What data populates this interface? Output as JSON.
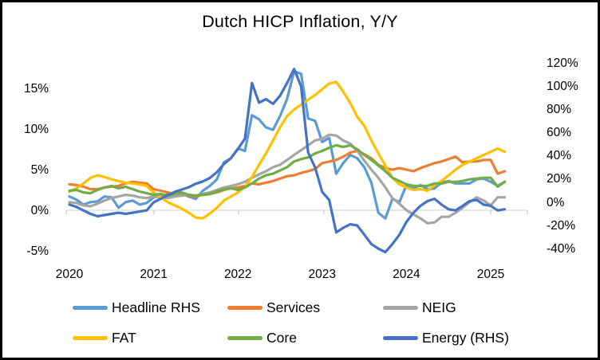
{
  "frame": {
    "border_color": "#000000",
    "background": "#ffffff"
  },
  "chart_data": {
    "type": "line",
    "title": "Dutch HICP Inflation, Y/Y",
    "frequency": "monthly",
    "start": "2020-01",
    "end": "2025-03",
    "x_tick_labels": [
      "2020",
      "2021",
      "2022",
      "2023",
      "2024",
      "2025"
    ],
    "grid": "zero-line-only",
    "gridline_color": "#D9D9D9",
    "left_axis": {
      "tick_labels": [
        "15%",
        "10%",
        "5%",
        "0%",
        "-5%"
      ],
      "tick_values": [
        15,
        10,
        5,
        0,
        -5
      ],
      "range": [
        -5,
        17.5
      ]
    },
    "right_axis": {
      "tick_labels": [
        "120%",
        "100%",
        "80%",
        "60%",
        "40%",
        "20%",
        "0%",
        "-20%",
        "-40%"
      ],
      "tick_values": [
        120,
        100,
        80,
        60,
        40,
        20,
        0,
        -20,
        -40
      ],
      "range": [
        -40,
        120
      ]
    },
    "legend_position": "bottom",
    "series": [
      {
        "name": "Headline RHS",
        "color": "#5B9BD5",
        "axis": "left",
        "values": [
          1.7,
          1.3,
          0.7,
          1.0,
          1.1,
          1.7,
          1.6,
          0.3,
          1.0,
          1.2,
          0.7,
          0.9,
          1.6,
          1.9,
          1.9,
          1.7,
          2.0,
          1.7,
          1.4,
          2.4,
          3.0,
          3.8,
          5.9,
          6.4,
          7.6,
          7.3,
          11.7,
          11.2,
          10.2,
          9.9,
          11.6,
          13.7,
          17.1,
          16.8,
          11.3,
          11.0,
          8.4,
          8.9,
          4.5,
          5.8,
          6.8,
          6.4,
          5.3,
          3.4,
          -0.3,
          -1.0,
          1.4,
          1.0,
          3.1,
          2.7,
          3.1,
          2.6,
          2.7,
          3.4,
          3.6,
          3.3,
          3.3,
          3.3,
          3.8,
          3.9,
          3.5,
          3.0,
          3.5
        ]
      },
      {
        "name": "Services",
        "color": "#ED7D31",
        "axis": "left",
        "values": [
          3.2,
          3.1,
          2.9,
          2.6,
          2.6,
          2.8,
          2.9,
          3.0,
          3.3,
          3.5,
          3.4,
          3.3,
          2.6,
          2.4,
          2.2,
          2.0,
          2.0,
          1.8,
          1.7,
          1.9,
          2.0,
          2.2,
          2.5,
          2.7,
          2.8,
          3.0,
          3.3,
          3.2,
          3.4,
          3.6,
          3.9,
          4.2,
          4.3,
          4.6,
          4.8,
          5.1,
          5.8,
          6.0,
          6.2,
          6.6,
          7.1,
          7.3,
          6.9,
          6.4,
          5.6,
          5.2,
          5.0,
          5.2,
          5.0,
          4.8,
          5.2,
          5.5,
          5.8,
          6.0,
          6.3,
          6.6,
          5.9,
          6.0,
          6.0,
          6.2,
          6.2,
          4.5,
          4.8
        ]
      },
      {
        "name": "NEIG",
        "color": "#A5A5A5",
        "axis": "left",
        "values": [
          1.0,
          0.9,
          0.6,
          0.5,
          0.8,
          1.2,
          1.5,
          1.7,
          1.9,
          1.8,
          1.6,
          1.5,
          1.7,
          1.6,
          1.5,
          1.7,
          1.8,
          1.9,
          1.8,
          2.0,
          2.2,
          2.5,
          2.8,
          3.0,
          3.2,
          3.5,
          4.0,
          4.4,
          4.8,
          5.3,
          5.6,
          6.2,
          6.8,
          7.4,
          8.0,
          8.6,
          8.8,
          9.3,
          9.2,
          8.6,
          8.2,
          7.3,
          6.1,
          5.0,
          4.0,
          2.8,
          1.5,
          0.8,
          0.0,
          -0.5,
          -1.0,
          -1.6,
          -1.5,
          -0.8,
          -0.8,
          -0.3,
          0.3,
          1.0,
          1.6,
          1.2,
          0.6,
          1.6,
          1.6
        ]
      },
      {
        "name": "FAT",
        "color": "#FFC000",
        "axis": "left",
        "values": [
          2.3,
          2.7,
          3.3,
          4.0,
          4.3,
          4.1,
          3.8,
          3.6,
          3.4,
          3.3,
          3.2,
          3.0,
          2.2,
          1.6,
          1.0,
          0.6,
          0.2,
          -0.3,
          -0.9,
          -1.0,
          -0.4,
          0.3,
          1.2,
          1.7,
          2.2,
          2.9,
          4.1,
          5.6,
          7.0,
          8.6,
          10.2,
          11.6,
          12.4,
          13.0,
          13.6,
          14.2,
          14.9,
          15.6,
          15.8,
          14.6,
          13.2,
          11.5,
          10.4,
          8.6,
          7.0,
          5.5,
          4.0,
          3.2,
          2.8,
          2.5,
          2.6,
          2.4,
          3.1,
          3.6,
          4.3,
          5.0,
          5.6,
          6.0,
          6.4,
          6.8,
          7.2,
          7.6,
          7.2
        ]
      },
      {
        "name": "Core",
        "color": "#70AD47",
        "axis": "left",
        "values": [
          2.4,
          2.5,
          2.2,
          2.1,
          2.5,
          2.8,
          3.0,
          2.7,
          2.9,
          2.6,
          2.3,
          2.1,
          1.9,
          2.0,
          1.8,
          2.0,
          2.2,
          1.9,
          1.8,
          1.9,
          2.0,
          2.3,
          2.6,
          2.7,
          2.5,
          2.8,
          3.3,
          3.9,
          4.3,
          4.5,
          4.9,
          5.3,
          6.0,
          6.3,
          6.5,
          7.0,
          7.3,
          7.7,
          8.0,
          7.8,
          8.0,
          7.5,
          6.8,
          6.2,
          5.5,
          4.8,
          4.0,
          3.6,
          3.2,
          3.0,
          3.0,
          3.0,
          3.3,
          3.3,
          3.5,
          3.5,
          3.6,
          3.8,
          3.9,
          4.0,
          4.0,
          2.9,
          3.5
        ]
      },
      {
        "name": "Energy (RHS)",
        "color": "#4472C4",
        "axis": "right",
        "values": [
          -2,
          -4,
          -7,
          -10,
          -12,
          -11,
          -10,
          -9,
          -10,
          -9,
          -8,
          -7,
          0,
          3,
          6,
          9,
          11,
          13,
          16,
          18,
          21,
          26,
          33,
          38,
          46,
          55,
          103,
          86,
          89,
          85,
          92,
          103,
          115,
          100,
          43,
          30,
          9,
          2,
          -26,
          -22,
          -19,
          -20,
          -28,
          -36,
          -40,
          -43,
          -36,
          -28,
          -17,
          -9,
          -3,
          1,
          3,
          -2,
          -6,
          -7,
          -3,
          1,
          2,
          -2,
          -3,
          -7,
          -6
        ]
      }
    ]
  },
  "legend": {
    "items": [
      {
        "label": "Headline RHS",
        "color": "#5B9BD5"
      },
      {
        "label": "Services",
        "color": "#ED7D31"
      },
      {
        "label": "NEIG",
        "color": "#A5A5A5"
      },
      {
        "label": "FAT",
        "color": "#FFC000"
      },
      {
        "label": "Core",
        "color": "#70AD47"
      },
      {
        "label": "Energy (RHS)",
        "color": "#4472C4"
      }
    ]
  }
}
